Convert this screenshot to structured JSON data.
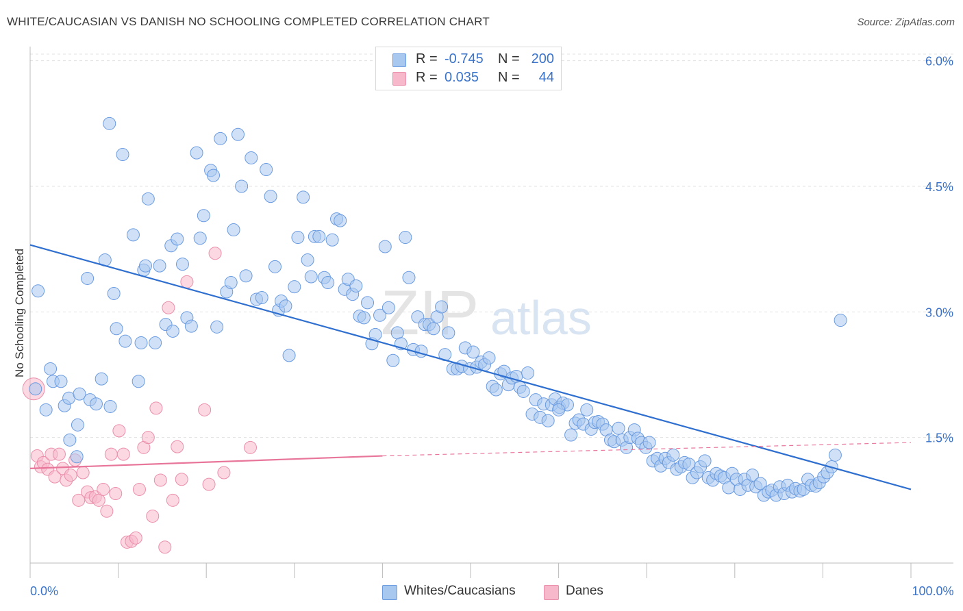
{
  "header": {
    "title": "WHITE/CAUCASIAN VS DANISH NO SCHOOLING COMPLETED CORRELATION CHART",
    "source": "Source: ZipAtlas.com"
  },
  "legend_top": {
    "rows": [
      {
        "r_label": "R =",
        "r_value": "-0.745",
        "n_label": "N =",
        "n_value": "200"
      },
      {
        "r_label": "R =",
        "r_value": "0.035",
        "n_label": "N =",
        "n_value": "44"
      }
    ]
  },
  "legend_bottom": {
    "items": [
      {
        "label": "Whites/Caucasians"
      },
      {
        "label": "Danes"
      }
    ]
  },
  "watermark": {
    "part1": "ZIP",
    "part2": "atlas"
  },
  "colors": {
    "blue_fill": "#a9c8f0",
    "blue_stroke": "#6a9be0",
    "blue_line": "#2f6fcf",
    "pink_fill": "#f7b8cb",
    "pink_stroke": "#ea8fab",
    "pink_line": "#e8769b",
    "grid": "#e0e0e0",
    "tick_label": "#3a73c9"
  },
  "chart_data": {
    "type": "scatter",
    "title": "WHITE/CAUCASIAN VS DANISH NO SCHOOLING COMPLETED CORRELATION CHART",
    "xlabel": "",
    "ylabel": "No Schooling Completed",
    "xlim": [
      0,
      100
    ],
    "ylim": [
      0,
      6.3
    ],
    "x_ticks": [
      {
        "value": 0,
        "label": "0.0%"
      },
      {
        "value": 100,
        "label": "100.0%"
      }
    ],
    "y_ticks": [
      {
        "value": 1.5,
        "label": "1.5%"
      },
      {
        "value": 3.0,
        "label": "3.0%"
      },
      {
        "value": 4.5,
        "label": "4.5%"
      },
      {
        "value": 6.0,
        "label": "6.0%"
      }
    ],
    "grid": true,
    "legend_position": "bottom-center",
    "series": [
      {
        "name": "Whites/Caucasians",
        "r": -0.745,
        "n": 200,
        "trend": {
          "x0": 0,
          "y0": 3.8,
          "x1": 100,
          "y1": 0.88
        },
        "points": [
          [
            0.6,
            2.08
          ],
          [
            0.9,
            3.25
          ],
          [
            1.8,
            1.83
          ],
          [
            2.3,
            2.32
          ],
          [
            2.6,
            2.17
          ],
          [
            3.5,
            2.17
          ],
          [
            3.9,
            1.88
          ],
          [
            4.4,
            1.97
          ],
          [
            5.4,
            1.65
          ],
          [
            4.5,
            1.47
          ],
          [
            5.3,
            1.27
          ],
          [
            5.6,
            2.02
          ],
          [
            6.5,
            3.4
          ],
          [
            6.8,
            1.95
          ],
          [
            7.5,
            1.9
          ],
          [
            8.1,
            2.2
          ],
          [
            8.5,
            3.62
          ],
          [
            9.0,
            5.25
          ],
          [
            9.1,
            1.87
          ],
          [
            9.5,
            3.22
          ],
          [
            9.8,
            2.8
          ],
          [
            10.5,
            4.88
          ],
          [
            10.8,
            2.65
          ],
          [
            11.7,
            3.92
          ],
          [
            12.3,
            2.17
          ],
          [
            12.6,
            2.63
          ],
          [
            12.9,
            3.5
          ],
          [
            13.1,
            3.55
          ],
          [
            13.4,
            4.35
          ],
          [
            14.2,
            2.63
          ],
          [
            14.7,
            3.55
          ],
          [
            15.4,
            2.85
          ],
          [
            16.0,
            3.79
          ],
          [
            16.2,
            2.77
          ],
          [
            16.7,
            3.87
          ],
          [
            17.3,
            3.57
          ],
          [
            17.8,
            2.93
          ],
          [
            18.3,
            2.83
          ],
          [
            18.9,
            4.9
          ],
          [
            19.3,
            3.88
          ],
          [
            19.7,
            4.15
          ],
          [
            20.5,
            4.69
          ],
          [
            20.8,
            4.63
          ],
          [
            21.2,
            2.82
          ],
          [
            21.6,
            5.07
          ],
          [
            22.3,
            3.24
          ],
          [
            22.8,
            3.35
          ],
          [
            23.1,
            3.98
          ],
          [
            23.6,
            5.12
          ],
          [
            24.0,
            4.5
          ],
          [
            24.5,
            3.43
          ],
          [
            25.1,
            4.84
          ],
          [
            25.7,
            3.15
          ],
          [
            26.3,
            3.17
          ],
          [
            26.8,
            4.7
          ],
          [
            27.3,
            4.38
          ],
          [
            27.8,
            3.54
          ],
          [
            28.2,
            3.02
          ],
          [
            28.5,
            3.13
          ],
          [
            29.0,
            3.07
          ],
          [
            29.4,
            2.48
          ],
          [
            30.0,
            3.3
          ],
          [
            30.4,
            3.89
          ],
          [
            31.0,
            4.37
          ],
          [
            31.5,
            3.62
          ],
          [
            31.9,
            3.42
          ],
          [
            32.3,
            3.9
          ],
          [
            32.8,
            3.9
          ],
          [
            33.4,
            3.41
          ],
          [
            33.8,
            3.35
          ],
          [
            34.3,
            3.86
          ],
          [
            34.8,
            4.11
          ],
          [
            35.2,
            4.09
          ],
          [
            35.7,
            3.27
          ],
          [
            36.1,
            3.39
          ],
          [
            36.6,
            3.21
          ],
          [
            37.0,
            3.31
          ],
          [
            37.4,
            2.95
          ],
          [
            37.9,
            2.93
          ],
          [
            38.3,
            3.11
          ],
          [
            38.8,
            2.62
          ],
          [
            39.2,
            2.73
          ],
          [
            39.7,
            2.96
          ],
          [
            40.3,
            3.78
          ],
          [
            40.7,
            3.05
          ],
          [
            41.2,
            2.42
          ],
          [
            41.7,
            2.75
          ],
          [
            42.1,
            2.62
          ],
          [
            42.6,
            3.89
          ],
          [
            43.0,
            3.41
          ],
          [
            43.5,
            2.55
          ],
          [
            44.0,
            2.94
          ],
          [
            44.4,
            2.53
          ],
          [
            44.8,
            2.85
          ],
          [
            45.3,
            2.85
          ],
          [
            45.8,
            2.8
          ],
          [
            46.2,
            2.94
          ],
          [
            46.7,
            3.06
          ],
          [
            47.1,
            2.49
          ],
          [
            47.5,
            2.75
          ],
          [
            48.0,
            2.32
          ],
          [
            48.5,
            2.32
          ],
          [
            49.0,
            2.35
          ],
          [
            49.4,
            2.57
          ],
          [
            49.9,
            2.32
          ],
          [
            50.3,
            2.52
          ],
          [
            50.7,
            2.34
          ],
          [
            51.2,
            2.4
          ],
          [
            51.6,
            2.37
          ],
          [
            52.1,
            2.45
          ],
          [
            52.5,
            2.11
          ],
          [
            52.9,
            2.07
          ],
          [
            53.4,
            2.26
          ],
          [
            53.8,
            2.29
          ],
          [
            54.3,
            2.13
          ],
          [
            54.7,
            2.21
          ],
          [
            55.2,
            2.23
          ],
          [
            55.6,
            2.1
          ],
          [
            56.0,
            2.05
          ],
          [
            56.5,
            2.27
          ],
          [
            57.0,
            1.78
          ],
          [
            57.4,
            1.95
          ],
          [
            57.9,
            1.74
          ],
          [
            58.3,
            1.9
          ],
          [
            58.8,
            1.7
          ],
          [
            59.2,
            1.89
          ],
          [
            59.6,
            1.96
          ],
          [
            60.1,
            1.86
          ],
          [
            60.5,
            1.91
          ],
          [
            61.0,
            1.89
          ],
          [
            61.4,
            1.53
          ],
          [
            61.9,
            1.67
          ],
          [
            62.3,
            1.71
          ],
          [
            62.8,
            1.66
          ],
          [
            63.2,
            1.83
          ],
          [
            63.7,
            1.6
          ],
          [
            64.1,
            1.68
          ],
          [
            64.5,
            1.69
          ],
          [
            65.0,
            1.66
          ],
          [
            65.4,
            1.59
          ],
          [
            65.9,
            1.47
          ],
          [
            66.3,
            1.45
          ],
          [
            66.8,
            1.61
          ],
          [
            67.2,
            1.47
          ],
          [
            67.7,
            1.38
          ],
          [
            68.1,
            1.5
          ],
          [
            68.6,
            1.59
          ],
          [
            69.0,
            1.49
          ],
          [
            69.4,
            1.44
          ],
          [
            69.9,
            1.38
          ],
          [
            70.3,
            1.44
          ],
          [
            70.7,
            1.22
          ],
          [
            71.2,
            1.25
          ],
          [
            71.6,
            1.16
          ],
          [
            72.1,
            1.25
          ],
          [
            72.5,
            1.2
          ],
          [
            73.0,
            1.29
          ],
          [
            73.4,
            1.12
          ],
          [
            73.9,
            1.15
          ],
          [
            74.3,
            1.2
          ],
          [
            74.8,
            1.18
          ],
          [
            75.2,
            1.02
          ],
          [
            75.7,
            1.08
          ],
          [
            76.1,
            1.15
          ],
          [
            76.6,
            1.22
          ],
          [
            77.0,
            1.02
          ],
          [
            77.5,
            0.99
          ],
          [
            77.9,
            1.07
          ],
          [
            78.4,
            1.04
          ],
          [
            78.8,
            1.02
          ],
          [
            79.3,
            0.9
          ],
          [
            79.7,
            1.07
          ],
          [
            80.2,
            1.0
          ],
          [
            80.6,
            0.88
          ],
          [
            81.1,
            1.0
          ],
          [
            81.5,
            0.93
          ],
          [
            82.0,
            1.05
          ],
          [
            82.4,
            0.91
          ],
          [
            82.9,
            0.95
          ],
          [
            83.3,
            0.81
          ],
          [
            83.8,
            0.85
          ],
          [
            84.2,
            0.87
          ],
          [
            84.7,
            0.81
          ],
          [
            85.1,
            0.91
          ],
          [
            85.6,
            0.83
          ],
          [
            86.0,
            0.93
          ],
          [
            86.5,
            0.85
          ],
          [
            86.9,
            0.89
          ],
          [
            87.4,
            0.86
          ],
          [
            87.8,
            0.88
          ],
          [
            88.3,
            1.0
          ],
          [
            88.7,
            0.93
          ],
          [
            89.2,
            0.92
          ],
          [
            89.6,
            0.96
          ],
          [
            90.1,
            1.03
          ],
          [
            90.5,
            1.08
          ],
          [
            91.0,
            1.15
          ],
          [
            91.4,
            1.29
          ],
          [
            92.0,
            2.9
          ],
          [
            60.0,
            1.83
          ]
        ]
      },
      {
        "name": "Danes",
        "r": 0.035,
        "n": 44,
        "trend": {
          "x0": 0,
          "y0": 1.13,
          "x1": 40,
          "y1": 1.28,
          "dashed_to": {
            "x": 100,
            "y": 1.44
          }
        },
        "points": [
          [
            0.4,
            2.08
          ],
          [
            0.8,
            1.28
          ],
          [
            1.2,
            1.15
          ],
          [
            1.5,
            1.2
          ],
          [
            2.0,
            1.12
          ],
          [
            2.4,
            1.3
          ],
          [
            2.8,
            1.03
          ],
          [
            3.3,
            1.3
          ],
          [
            3.7,
            1.13
          ],
          [
            4.1,
            0.99
          ],
          [
            4.6,
            1.05
          ],
          [
            5.1,
            1.23
          ],
          [
            5.5,
            0.75
          ],
          [
            6.0,
            1.08
          ],
          [
            6.5,
            0.85
          ],
          [
            6.9,
            0.78
          ],
          [
            7.4,
            0.79
          ],
          [
            7.8,
            0.75
          ],
          [
            8.3,
            0.88
          ],
          [
            8.7,
            0.62
          ],
          [
            9.2,
            1.3
          ],
          [
            9.7,
            0.83
          ],
          [
            10.1,
            1.58
          ],
          [
            10.6,
            1.3
          ],
          [
            11.0,
            0.25
          ],
          [
            11.5,
            0.26
          ],
          [
            12.0,
            0.3
          ],
          [
            12.4,
            0.88
          ],
          [
            12.9,
            1.38
          ],
          [
            13.4,
            1.5
          ],
          [
            13.9,
            0.56
          ],
          [
            14.3,
            1.85
          ],
          [
            14.8,
            0.99
          ],
          [
            15.3,
            0.19
          ],
          [
            15.7,
            3.05
          ],
          [
            16.2,
            0.75
          ],
          [
            16.7,
            1.39
          ],
          [
            17.2,
            1.0
          ],
          [
            17.8,
            3.36
          ],
          [
            19.8,
            1.83
          ],
          [
            20.3,
            0.94
          ],
          [
            21.0,
            3.7
          ],
          [
            22.0,
            1.08
          ],
          [
            25.0,
            1.38
          ]
        ]
      }
    ]
  }
}
